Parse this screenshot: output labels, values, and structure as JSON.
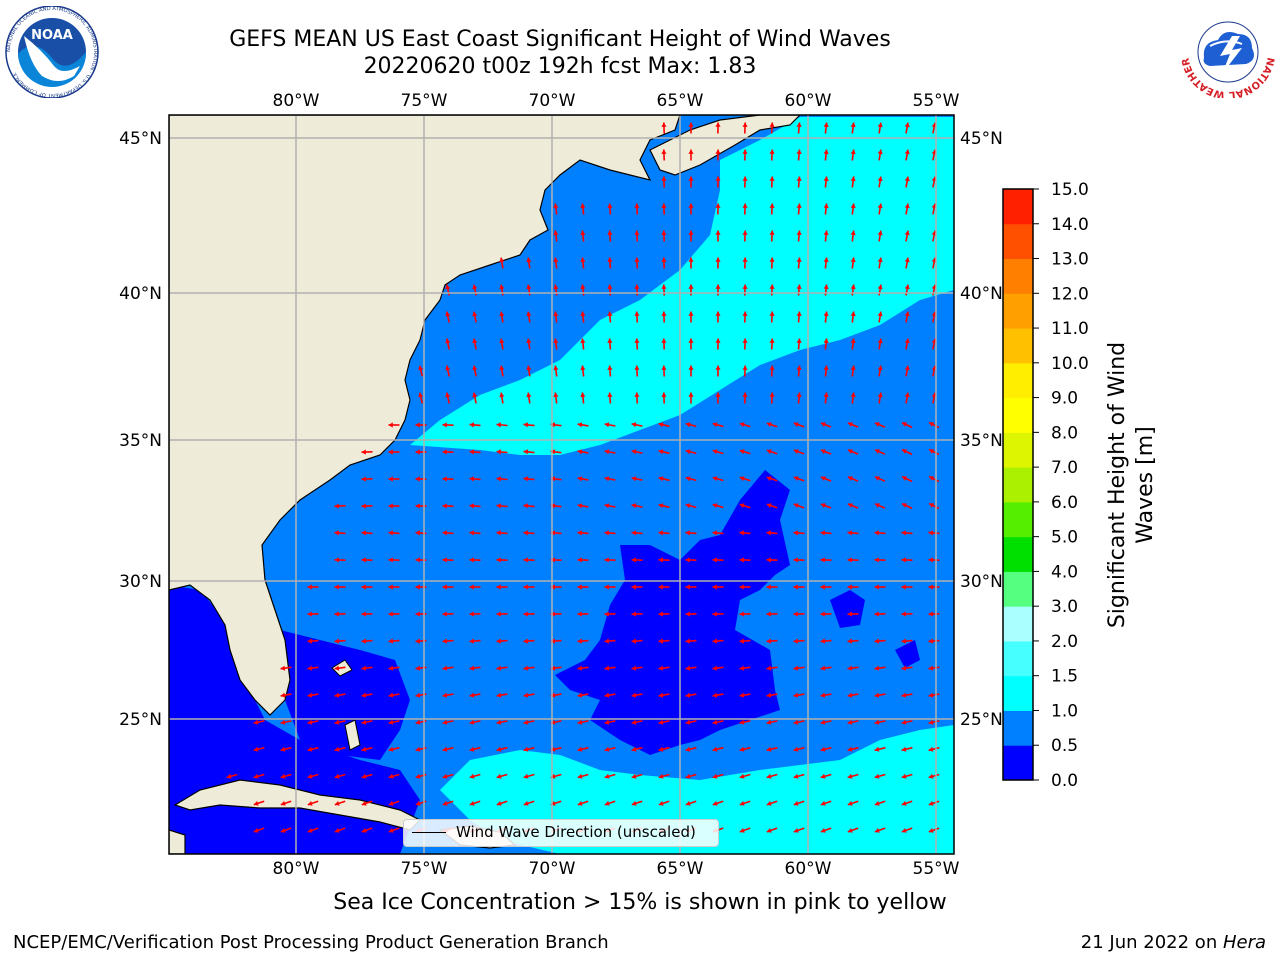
{
  "header": {
    "title_line1": "GEFS MEAN US East Coast Significant Height of Wind Waves",
    "title_line2": "20220620 t00z 192h fcst   Max: 1.83"
  },
  "logos": {
    "noaa_text": "NOAA",
    "noaa_ring_text": "NATIONAL OCEANIC AND ATMOSPHERIC ADMINISTRATION · U.S. DEPARTMENT OF COMMERCE",
    "nws_ring_text": "NATIONAL WEATHER SERVICE"
  },
  "map": {
    "lon_labels": [
      "80°W",
      "75°W",
      "70°W",
      "65°W",
      "60°W",
      "55°W"
    ],
    "lat_labels": [
      "45°N",
      "40°N",
      "35°N",
      "30°N",
      "25°N"
    ],
    "legend_text": "Wind Wave Direction (unscaled)",
    "colors": {
      "land": "#eeecd9",
      "bin_0_0_5": "#0000ff",
      "bin_0_5_1": "#0080ff",
      "bin_1_1_5": "#00ffff",
      "arrow": "#ff0000",
      "grid": "#b0b0b0"
    },
    "regions": [
      {
        "name": "Gulf of Mexico",
        "value_range": "0.0-0.5"
      },
      {
        "name": "Sargasso Sea",
        "value_range": "0.0-0.5"
      },
      {
        "name": "Gulf Stream band",
        "value_range": "1.0-1.5"
      },
      {
        "name": "Caribbean / Bahamas south",
        "value_range": "1.0-1.5"
      }
    ]
  },
  "colorbar": {
    "label_line1": "Significant Height of Wind",
    "label_line2": "Waves [m]",
    "ticks": [
      "15.0",
      "14.0",
      "13.0",
      "12.0",
      "11.0",
      "10.0",
      "9.0",
      "8.0",
      "7.0",
      "6.0",
      "5.0",
      "4.0",
      "3.0",
      "2.0",
      "1.5",
      "1.0",
      "0.5",
      "0.0"
    ],
    "bins": [
      {
        "range": "0.0-0.5",
        "color": "#0000ff"
      },
      {
        "range": "0.5-1.0",
        "color": "#0080ff"
      },
      {
        "range": "1.0-1.5",
        "color": "#00ffff"
      },
      {
        "range": "1.5-2.0",
        "color": "#46ffff"
      },
      {
        "range": "2.0-3.0",
        "color": "#aaffff"
      },
      {
        "range": "3.0-4.0",
        "color": "#55ff80"
      },
      {
        "range": "4.0-5.0",
        "color": "#00e000"
      },
      {
        "range": "5.0-6.0",
        "color": "#55ee00"
      },
      {
        "range": "6.0-7.0",
        "color": "#aaf000"
      },
      {
        "range": "7.0-8.0",
        "color": "#ddf500"
      },
      {
        "range": "8.0-9.0",
        "color": "#ffff00"
      },
      {
        "range": "9.0-10.0",
        "color": "#ffee00"
      },
      {
        "range": "10.0-11.0",
        "color": "#ffc000"
      },
      {
        "range": "11.0-12.0",
        "color": "#ffa000"
      },
      {
        "range": "12.0-13.0",
        "color": "#ff8000"
      },
      {
        "range": "13.0-14.0",
        "color": "#ff5000"
      },
      {
        "range": "14.0-15.0",
        "color": "#ff2000"
      }
    ]
  },
  "notes": {
    "sea_ice": "Sea Ice Concentration > 15% is shown in pink to yellow"
  },
  "footer": {
    "left": "NCEP/EMC/Verification Post Processing Product Generation Branch",
    "right_date": "21 Jun 2022 on ",
    "right_machine": "Hera"
  }
}
